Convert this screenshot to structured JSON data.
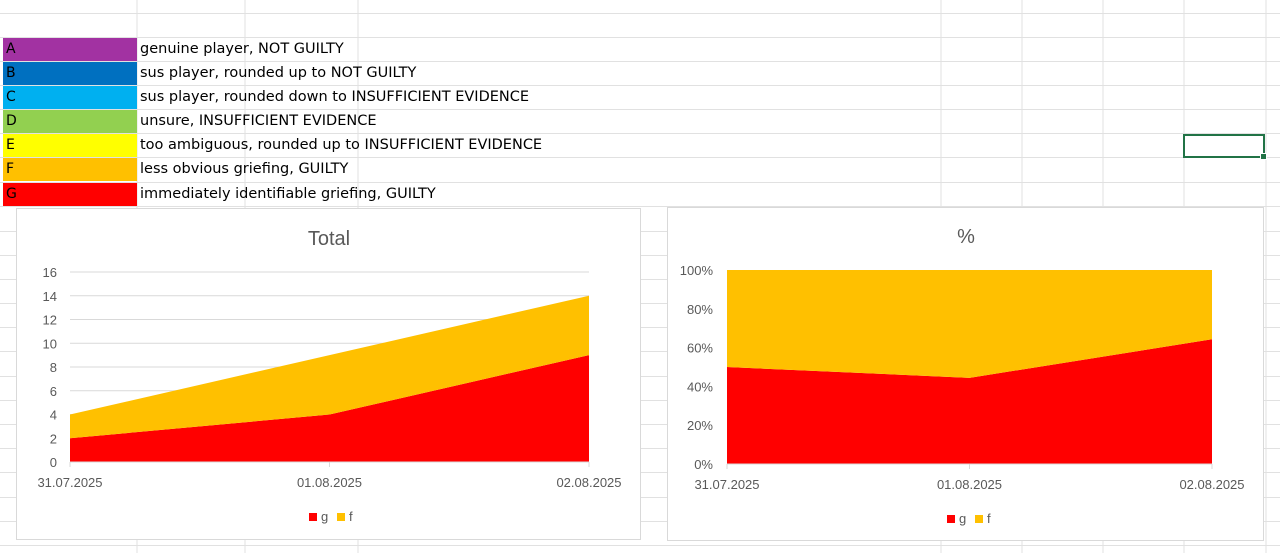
{
  "legend": [
    {
      "code": "A",
      "description": "genuine player, NOT GUILTY",
      "color": "#a232a2"
    },
    {
      "code": "B",
      "description": "sus player, rounded up to NOT GUILTY",
      "color": "#0070c0"
    },
    {
      "code": "C",
      "description": "sus player, rounded down to INSUFFICIENT EVIDENCE",
      "color": "#00b0f0"
    },
    {
      "code": "D",
      "description": "unsure, INSUFFICIENT EVIDENCE",
      "color": "#92d050"
    },
    {
      "code": "E",
      "description": "too ambiguous, rounded up to INSUFFICIENT EVIDENCE",
      "color": "#ffff00"
    },
    {
      "code": "F",
      "description": "less obvious griefing, GUILTY",
      "color": "#ffc000"
    },
    {
      "code": "G",
      "description": "immediately identifiable griefing, GUILTY",
      "color": "#ff0000"
    }
  ],
  "chart_data": [
    {
      "type": "area",
      "stacked": true,
      "title": "Total",
      "categories": [
        "31.07.2025",
        "01.08.2025",
        "02.08.2025"
      ],
      "series": [
        {
          "name": "g",
          "values": [
            2,
            4,
            9
          ],
          "color": "#ff0000"
        },
        {
          "name": "f",
          "values": [
            2,
            5,
            5
          ],
          "color": "#ffc000"
        }
      ],
      "yticks": [
        "0",
        "2",
        "4",
        "6",
        "8",
        "10",
        "12",
        "14",
        "16"
      ],
      "ylim": [
        0,
        16
      ],
      "grid": true,
      "legend_position": "bottom"
    },
    {
      "type": "area",
      "stacked": true,
      "percent": true,
      "title": "%",
      "categories": [
        "31.07.2025",
        "01.08.2025",
        "02.08.2025"
      ],
      "series": [
        {
          "name": "g",
          "values": [
            0.5,
            0.444,
            0.643
          ],
          "color": "#ff0000"
        },
        {
          "name": "f",
          "values": [
            0.5,
            0.556,
            0.357
          ],
          "color": "#ffc000"
        }
      ],
      "yticks": [
        "0%",
        "20%",
        "40%",
        "60%",
        "80%",
        "100%"
      ],
      "ylim": [
        0,
        1
      ],
      "grid": false,
      "legend_position": "bottom"
    }
  ]
}
